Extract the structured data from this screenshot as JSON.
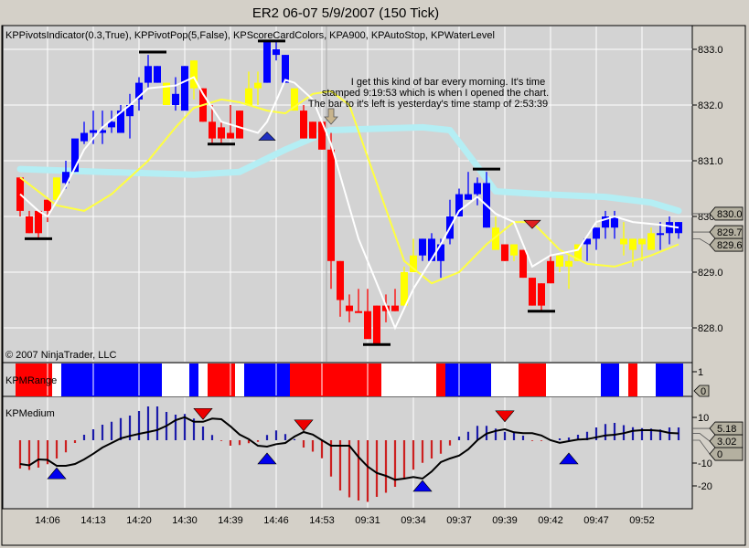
{
  "title": "ER2 06-07  5/9/2007  (150 Tick)",
  "indicator_legend": "KPPivotsIndicator(0.3,True), KPPivotPop(5,False), KPScoreCardColors, KPA900, KPAutoStop, KPWaterLevel",
  "copyright": "© 2007 NinjaTrader, LLC",
  "annotation": [
    "I get this kind of bar every morning.  It's time",
    "stamped 9:19:53 which is when I opened the chart.",
    "The bar to it's left is yesterday's time stamp of 2:53:39"
  ],
  "colors": {
    "up": "#0000ff",
    "down": "#ff0000",
    "neutral": "#ffff00",
    "water": "#b4eef4",
    "fast_ma": "#ffffff",
    "slow_ma": "#ffff40",
    "hist_up": "#1c1caa",
    "hist_down": "#cc2020",
    "background": "#d3d3d3",
    "grid": "#ffffff"
  },
  "chart_data": [
    {
      "type": "candlestick",
      "name": "price",
      "ylim": [
        827.5,
        833.3
      ],
      "yticks": [
        "833.0",
        "832.0",
        "831.0",
        "830.0",
        "829.0",
        "828.0"
      ],
      "grid": true,
      "bars_ohlc_color": [
        [
          830.7,
          830.7,
          830.0,
          830.1,
          "r"
        ],
        [
          830.0,
          830.1,
          829.7,
          829.7,
          "r"
        ],
        [
          830.1,
          830.1,
          829.6,
          829.7,
          "r"
        ],
        [
          830.3,
          830.3,
          829.9,
          830.1,
          "r"
        ],
        [
          830.3,
          830.7,
          830.3,
          830.7,
          "y"
        ],
        [
          830.6,
          831.0,
          830.5,
          830.8,
          "b"
        ],
        [
          830.8,
          831.0,
          830.8,
          831.4,
          "b"
        ],
        [
          831.35,
          831.7,
          831.3,
          831.5,
          "b"
        ],
        [
          831.5,
          831.9,
          831.3,
          831.55,
          "b"
        ],
        [
          831.5,
          831.9,
          831.3,
          831.55,
          "b"
        ],
        [
          831.6,
          831.9,
          831.5,
          831.7,
          "b"
        ],
        [
          831.5,
          832.0,
          831.5,
          831.9,
          "b"
        ],
        [
          831.8,
          832.2,
          831.4,
          832.0,
          "b"
        ],
        [
          832.1,
          832.5,
          831.9,
          832.4,
          "b"
        ],
        [
          832.4,
          832.9,
          832.3,
          832.7,
          "b"
        ],
        [
          832.4,
          832.7,
          832.4,
          832.7,
          "b"
        ],
        [
          832.0,
          832.4,
          832.0,
          832.4,
          "y"
        ],
        [
          832.0,
          832.5,
          831.9,
          832.2,
          "b"
        ],
        [
          831.9,
          832.7,
          831.9,
          832.7,
          "b"
        ],
        [
          832.3,
          832.8,
          832.1,
          832.8,
          "y"
        ],
        [
          832.3,
          832.3,
          831.7,
          831.7,
          "r"
        ],
        [
          831.7,
          832.0,
          831.3,
          831.4,
          "r"
        ],
        [
          831.6,
          831.7,
          831.3,
          831.4,
          "r"
        ],
        [
          831.5,
          832.0,
          831.4,
          831.4,
          "r"
        ],
        [
          831.9,
          831.9,
          831.4,
          831.4,
          "r"
        ],
        [
          832.0,
          832.6,
          832.0,
          832.3,
          "y"
        ],
        [
          832.3,
          832.6,
          832.0,
          832.4,
          "y"
        ],
        [
          832.4,
          833.15,
          832.4,
          833.15,
          "b"
        ],
        [
          832.9,
          833.15,
          832.8,
          833.0,
          "b"
        ],
        [
          832.4,
          832.9,
          832.4,
          832.9,
          "b"
        ],
        [
          831.9,
          832.3,
          831.9,
          832.3,
          "y"
        ],
        [
          831.9,
          832.0,
          831.4,
          831.4,
          "r"
        ],
        [
          831.7,
          831.7,
          831.4,
          831.4,
          "r"
        ],
        [
          831.7,
          831.7,
          831.2,
          831.2,
          "r"
        ],
        [
          831.2,
          831.5,
          828.7,
          829.2,
          "r"
        ],
        [
          829.2,
          829.2,
          828.2,
          828.5,
          "r"
        ],
        [
          828.4,
          828.6,
          828.1,
          828.3,
          "r"
        ],
        [
          828.3,
          828.7,
          828.3,
          828.3,
          "r"
        ],
        [
          828.3,
          828.7,
          827.8,
          827.8,
          "r"
        ],
        [
          828.4,
          828.4,
          827.7,
          827.7,
          "r"
        ],
        [
          828.4,
          828.6,
          828.1,
          828.3,
          "r"
        ],
        [
          828.4,
          828.7,
          828.3,
          828.3,
          "r"
        ],
        [
          828.4,
          829.1,
          828.4,
          829.0,
          "y"
        ],
        [
          829.0,
          829.6,
          829.0,
          829.3,
          "y"
        ],
        [
          829.3,
          829.6,
          829.2,
          829.6,
          "b"
        ],
        [
          829.2,
          829.7,
          829.2,
          829.6,
          "b"
        ],
        [
          829.2,
          829.6,
          828.9,
          829.5,
          "b"
        ],
        [
          829.6,
          830.3,
          829.5,
          830.0,
          "b"
        ],
        [
          830.0,
          830.5,
          830.0,
          830.4,
          "b"
        ],
        [
          830.3,
          830.8,
          830.3,
          830.4,
          "b"
        ],
        [
          830.4,
          830.7,
          830.2,
          830.6,
          "b"
        ],
        [
          829.8,
          830.8,
          829.8,
          830.6,
          "b"
        ],
        [
          829.4,
          830.0,
          829.4,
          829.8,
          "y"
        ],
        [
          829.5,
          829.5,
          829.2,
          829.2,
          "r"
        ],
        [
          829.3,
          829.5,
          829.2,
          829.5,
          "y"
        ],
        [
          829.4,
          829.4,
          828.9,
          828.9,
          "r"
        ],
        [
          828.9,
          828.9,
          828.4,
          828.4,
          "r"
        ],
        [
          828.8,
          828.8,
          828.3,
          828.4,
          "r"
        ],
        [
          829.2,
          829.3,
          828.8,
          828.8,
          "r"
        ],
        [
          829.1,
          829.3,
          829.0,
          829.3,
          "y"
        ],
        [
          829.1,
          829.3,
          828.7,
          829.2,
          "y"
        ],
        [
          829.2,
          829.5,
          829.2,
          829.5,
          "y"
        ],
        [
          829.5,
          829.6,
          829.2,
          829.6,
          "b"
        ],
        [
          829.6,
          829.8,
          829.4,
          829.8,
          "b"
        ],
        [
          829.8,
          830.1,
          829.6,
          830.0,
          "b"
        ],
        [
          829.8,
          830.1,
          829.6,
          830.0,
          "b"
        ],
        [
          829.6,
          829.9,
          829.3,
          829.5,
          "y"
        ],
        [
          829.6,
          829.6,
          829.1,
          829.4,
          "y"
        ],
        [
          829.6,
          829.6,
          829.2,
          829.5,
          "y"
        ],
        [
          829.7,
          829.8,
          829.4,
          829.4,
          "y"
        ],
        [
          829.7,
          829.9,
          829.4,
          829.7,
          "b"
        ],
        [
          829.7,
          830.0,
          829.5,
          829.9,
          "b"
        ],
        [
          829.7,
          829.9,
          829.6,
          829.9,
          "b"
        ]
      ],
      "water_level": [
        [
          1,
          830.85
        ],
        [
          10,
          830.8
        ],
        [
          20,
          830.75
        ],
        [
          25,
          830.8
        ],
        [
          30,
          831.2
        ],
        [
          35,
          831.55
        ],
        [
          45,
          831.6
        ],
        [
          48,
          831.55
        ],
        [
          51,
          830.9
        ],
        [
          53,
          830.45
        ],
        [
          58,
          830.4
        ],
        [
          65,
          830.35
        ],
        [
          70,
          830.25
        ],
        [
          73,
          830.1
        ]
      ],
      "fast_ma": [
        [
          1,
          830.4
        ],
        [
          3,
          830.1
        ],
        [
          4,
          830.0
        ],
        [
          6,
          830.55
        ],
        [
          8,
          831.2
        ],
        [
          10,
          831.6
        ],
        [
          13,
          832.0
        ],
        [
          15,
          832.3
        ],
        [
          18,
          832.35
        ],
        [
          20,
          832.5
        ],
        [
          21,
          832.2
        ],
        [
          23,
          831.7
        ],
        [
          27,
          831.5
        ],
        [
          28,
          831.7
        ],
        [
          30,
          832.45
        ],
        [
          31,
          832.4
        ],
        [
          33,
          832.1
        ],
        [
          35,
          831.3
        ],
        [
          38,
          829.6
        ],
        [
          42,
          828.0
        ],
        [
          44,
          828.7
        ],
        [
          47,
          829.5
        ],
        [
          49,
          830.1
        ],
        [
          51,
          830.35
        ],
        [
          53,
          830.05
        ],
        [
          55,
          829.9
        ],
        [
          57,
          829.1
        ],
        [
          59,
          829.3
        ],
        [
          62,
          829.4
        ],
        [
          64,
          829.9
        ],
        [
          66,
          830.0
        ],
        [
          68,
          829.9
        ],
        [
          71,
          829.85
        ],
        [
          73,
          829.8
        ]
      ],
      "slow_ma": [
        [
          1,
          830.7
        ],
        [
          5,
          830.2
        ],
        [
          8,
          830.1
        ],
        [
          11,
          830.4
        ],
        [
          15,
          831.0
        ],
        [
          18,
          831.6
        ],
        [
          20,
          831.95
        ],
        [
          23,
          832.1
        ],
        [
          25,
          832.05
        ],
        [
          28,
          831.9
        ],
        [
          30,
          831.85
        ],
        [
          33,
          832.2
        ],
        [
          35,
          832.25
        ],
        [
          37,
          832.0
        ],
        [
          40,
          830.6
        ],
        [
          43,
          829.2
        ],
        [
          46,
          828.8
        ],
        [
          49,
          829.0
        ],
        [
          52,
          829.5
        ],
        [
          55,
          829.9
        ],
        [
          57,
          829.9
        ],
        [
          60,
          829.4
        ],
        [
          63,
          829.15
        ],
        [
          66,
          829.1
        ],
        [
          70,
          829.3
        ],
        [
          73,
          829.5
        ]
      ],
      "pivot_lines": [
        [
          3,
          829.6
        ],
        [
          15.5,
          832.95
        ],
        [
          23,
          831.3
        ],
        [
          28.5,
          833.15
        ],
        [
          40,
          827.7
        ],
        [
          52,
          830.85
        ],
        [
          58,
          828.3
        ]
      ],
      "pivot_pop_markers": [
        {
          "bar": 28,
          "price": 831.45,
          "dir": "up"
        },
        {
          "bar": 57,
          "price": 829.85,
          "dir": "down"
        }
      ],
      "price_tags": [
        {
          "label": "830.0",
          "price": 830.05,
          "color": "#b0b0a0"
        },
        {
          "label": "829.6",
          "price": 829.6,
          "color": "#b0b0a0"
        },
        {
          "label": "829.7",
          "price": 829.72,
          "color": "#b0b0a0"
        }
      ],
      "session_break_after_bar": 34
    },
    {
      "type": "heatmap",
      "name": "KPMRange",
      "yticks": [
        "1"
      ],
      "value_tag": "0",
      "bar_colors": [
        "r",
        "r",
        "r",
        "r",
        "w",
        "b",
        "b",
        "b",
        "b",
        "b",
        "b",
        "b",
        "b",
        "b",
        "b",
        "b",
        "w",
        "w",
        "w",
        "b",
        "w",
        "r",
        "r",
        "r",
        "w",
        "b",
        "b",
        "b",
        "b",
        "b",
        "r",
        "r",
        "r",
        "r",
        "r",
        "r",
        "r",
        "r",
        "r",
        "r",
        "w",
        "w",
        "w",
        "w",
        "w",
        "w",
        "r",
        "b",
        "b",
        "b",
        "b",
        "b",
        "w",
        "w",
        "w",
        "r",
        "r",
        "r",
        "w",
        "w",
        "w",
        "w",
        "w",
        "w",
        "b",
        "b",
        "w",
        "r",
        "w",
        "w",
        "b",
        "b",
        "b"
      ]
    },
    {
      "type": "bar",
      "name": "KPMedium",
      "ylim": [
        -28,
        14
      ],
      "yticks": [
        "10",
        "-10",
        "-20"
      ],
      "value_tags": [
        "0",
        "5.18",
        "3.02"
      ],
      "histogram": [
        -12.4,
        -13,
        -12,
        -10.5,
        -8,
        -5.3,
        -1.2,
        2.4,
        4.8,
        6.8,
        8.1,
        9.7,
        10.8,
        12.8,
        14.8,
        14.8,
        12.4,
        11.2,
        11.5,
        9.5,
        6,
        2.3,
        -0.3,
        -2.4,
        -2.1,
        -1.3,
        -0.7,
        2.3,
        4.3,
        2.7,
        0.5,
        -3.2,
        -5,
        -7.9,
        -15.9,
        -22,
        -25,
        -26.4,
        -27,
        -24.8,
        -23,
        -20.4,
        -17.2,
        -12.9,
        -9.9,
        -8,
        -5.9,
        -2.3,
        1.6,
        3.7,
        6.3,
        6.3,
        5.1,
        3.7,
        3.7,
        2,
        -0.3,
        -0.3,
        0,
        0.8,
        1.2,
        2.4,
        3.7,
        5.6,
        7.1,
        7.6,
        6.6,
        5.7,
        5.3,
        5.1,
        4.7,
        5.6,
        5.6
      ],
      "line": [
        -10.4,
        -11,
        -8.4,
        -8.6,
        -11.2,
        -11.2,
        -10.4,
        -8.4,
        -5.9,
        -3.2,
        -1.2,
        0.8,
        1.9,
        2.8,
        3.6,
        4.5,
        6.3,
        8.8,
        10.1,
        8.1,
        8.1,
        9.5,
        9.2,
        6.1,
        2.5,
        0.5,
        -2.4,
        -2.8,
        -1.7,
        -1.2,
        1.6,
        3.6,
        2.5,
        0,
        -2.4,
        -2.4,
        -2.4,
        -7.3,
        -11.5,
        -14.3,
        -15.6,
        -17.3,
        -16.8,
        -16.1,
        -16.8,
        -13.7,
        -9.6,
        -8,
        -6.7,
        -4,
        0,
        2.9,
        4.1,
        4.8,
        3.5,
        3.1,
        3.1,
        2.1,
        0,
        -1.1,
        -0.4,
        0.3,
        0.5,
        1.3,
        2.1,
        2.4,
        3.1,
        4.1,
        4.4,
        4.4,
        4.1,
        3.2,
        3.0
      ],
      "markers": [
        {
          "bar": 5,
          "value": -14.5,
          "dir": "up"
        },
        {
          "bar": 21,
          "value": 11.5,
          "dir": "down"
        },
        {
          "bar": 28,
          "value": -8,
          "dir": "up"
        },
        {
          "bar": 32,
          "value": 6.5,
          "dir": "down"
        },
        {
          "bar": 45,
          "value": -20,
          "dir": "up"
        },
        {
          "bar": 54,
          "value": 10.5,
          "dir": "down"
        },
        {
          "bar": 61,
          "value": -8,
          "dir": "up"
        }
      ]
    }
  ],
  "x_axis": {
    "tick_bars": [
      4,
      9,
      14,
      19,
      24,
      29,
      34,
      39,
      44,
      49,
      54,
      59,
      64,
      69
    ],
    "labels": [
      "14:06",
      "14:13",
      "14:20",
      "14:30",
      "14:39",
      "14:46",
      "14:53",
      "09:31",
      "09:34",
      "09:37",
      "09:39",
      "09:42",
      "09:47",
      "09:52"
    ]
  }
}
